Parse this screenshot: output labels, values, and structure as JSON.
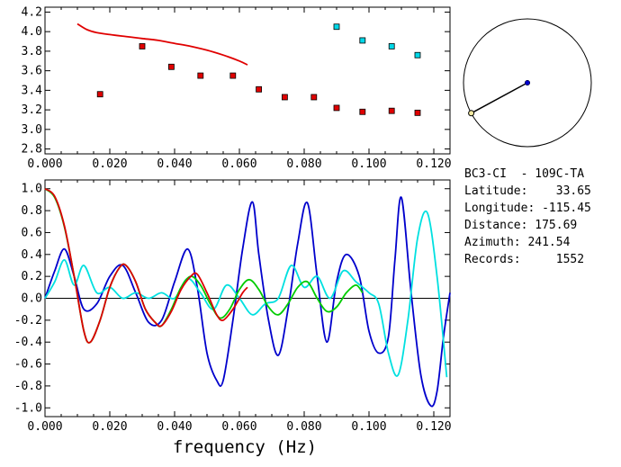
{
  "chart_data": [
    {
      "type": "scatter",
      "xlim": [
        0,
        0.125
      ],
      "ylim": [
        2.75,
        4.25
      ],
      "xticks": [
        "0.000",
        "0.020",
        "0.040",
        "0.060",
        "0.080",
        "0.100",
        "0.120"
      ],
      "yticks": [
        "2.8",
        "3.0",
        "3.2",
        "3.4",
        "3.6",
        "3.8",
        "4.0",
        "4.2"
      ],
      "series": [
        {
          "kind": "line",
          "color": "#e00000",
          "x": [
            0.01,
            0.013,
            0.016,
            0.02,
            0.025,
            0.03,
            0.035,
            0.04,
            0.045,
            0.05,
            0.055,
            0.06,
            0.0625
          ],
          "y": [
            4.08,
            4.02,
            3.99,
            3.97,
            3.95,
            3.93,
            3.91,
            3.88,
            3.85,
            3.81,
            3.76,
            3.7,
            3.66
          ]
        },
        {
          "kind": "markers",
          "color": "#e00000",
          "x": [
            0.017,
            0.03,
            0.039,
            0.048,
            0.058,
            0.066,
            0.074,
            0.083,
            0.09,
            0.098,
            0.107,
            0.115
          ],
          "y": [
            3.36,
            3.85,
            3.64,
            3.55,
            3.55,
            3.41,
            3.33,
            3.33,
            3.22,
            3.18,
            3.19,
            3.17
          ]
        },
        {
          "kind": "markers",
          "color": "#00d8e8",
          "x": [
            0.09,
            0.098,
            0.107,
            0.115
          ],
          "y": [
            4.05,
            3.91,
            3.85,
            3.76
          ]
        }
      ]
    },
    {
      "type": "line",
      "xlim": [
        0,
        0.125
      ],
      "ylim": [
        -1.08,
        1.08
      ],
      "xticks": [
        "0.000",
        "0.020",
        "0.040",
        "0.060",
        "0.080",
        "0.100",
        "0.120"
      ],
      "yticks": [
        "1.0",
        "0.8",
        "0.6",
        "0.4",
        "0.2",
        "0.0",
        "-0.2",
        "-0.4",
        "-0.6",
        "-0.8",
        "-1.0"
      ],
      "xlabel": "frequency (Hz)",
      "series": [
        {
          "color": "#0000cc",
          "x": [
            0.0,
            0.003,
            0.006,
            0.009,
            0.012,
            0.016,
            0.02,
            0.024,
            0.028,
            0.032,
            0.036,
            0.04,
            0.044,
            0.047,
            0.05,
            0.053,
            0.055,
            0.058,
            0.061,
            0.064,
            0.066,
            0.069,
            0.072,
            0.075,
            0.078,
            0.081,
            0.084,
            0.087,
            0.09,
            0.093,
            0.097,
            0.1,
            0.103,
            0.106,
            0.108,
            0.11,
            0.113,
            0.116,
            0.119,
            0.121,
            0.123,
            0.125
          ],
          "y": [
            0.0,
            0.25,
            0.45,
            0.2,
            -0.1,
            -0.05,
            0.2,
            0.3,
            0.05,
            -0.22,
            -0.2,
            0.15,
            0.45,
            0.1,
            -0.5,
            -0.75,
            -0.75,
            -0.2,
            0.45,
            0.88,
            0.4,
            -0.2,
            -0.52,
            -0.1,
            0.5,
            0.87,
            0.2,
            -0.4,
            0.15,
            0.4,
            0.2,
            -0.3,
            -0.5,
            -0.35,
            0.35,
            0.92,
            0.05,
            -0.7,
            -0.98,
            -0.85,
            -0.35,
            0.05
          ]
        },
        {
          "color": "#00e0e0",
          "x": [
            0.0,
            0.003,
            0.006,
            0.009,
            0.012,
            0.016,
            0.02,
            0.024,
            0.028,
            0.032,
            0.036,
            0.04,
            0.044,
            0.048,
            0.052,
            0.056,
            0.06,
            0.064,
            0.068,
            0.072,
            0.076,
            0.08,
            0.084,
            0.088,
            0.092,
            0.096,
            0.1,
            0.103,
            0.106,
            0.109,
            0.112,
            0.115,
            0.118,
            0.121,
            0.124
          ],
          "y": [
            0.0,
            0.15,
            0.35,
            0.12,
            0.3,
            0.05,
            0.1,
            0.0,
            0.05,
            0.0,
            0.05,
            0.0,
            0.18,
            0.05,
            -0.1,
            0.12,
            0.0,
            -0.15,
            -0.05,
            0.0,
            0.3,
            0.1,
            0.2,
            0.0,
            0.25,
            0.15,
            0.05,
            -0.05,
            -0.5,
            -0.7,
            -0.2,
            0.55,
            0.78,
            0.2,
            -0.72
          ]
        },
        {
          "color": "#00cc00",
          "x": [
            0.0,
            0.003,
            0.006,
            0.009,
            0.012,
            0.014,
            0.017,
            0.02,
            0.023,
            0.025,
            0.028,
            0.031,
            0.034,
            0.036,
            0.039,
            0.042,
            0.045,
            0.048,
            0.051,
            0.054,
            0.057,
            0.06,
            0.063,
            0.066,
            0.069,
            0.072,
            0.075,
            0.078,
            0.081,
            0.084,
            0.087,
            0.09,
            0.093,
            0.096,
            0.098
          ],
          "y": [
            1.0,
            0.92,
            0.65,
            0.2,
            -0.3,
            -0.4,
            -0.2,
            0.1,
            0.28,
            0.3,
            0.15,
            -0.1,
            -0.22,
            -0.25,
            -0.1,
            0.1,
            0.2,
            0.12,
            -0.05,
            -0.18,
            -0.1,
            0.08,
            0.17,
            0.08,
            -0.08,
            -0.15,
            -0.05,
            0.1,
            0.15,
            0.0,
            -0.12,
            -0.08,
            0.05,
            0.12,
            0.05
          ]
        },
        {
          "color": "#dd0000",
          "x": [
            0.0,
            0.003,
            0.006,
            0.009,
            0.012,
            0.014,
            0.017,
            0.02,
            0.023,
            0.025,
            0.028,
            0.031,
            0.034,
            0.036,
            0.039,
            0.042,
            0.045,
            0.047,
            0.05,
            0.053,
            0.055,
            0.058,
            0.061,
            0.0625
          ],
          "y": [
            1.0,
            0.93,
            0.66,
            0.2,
            -0.3,
            -0.4,
            -0.2,
            0.1,
            0.28,
            0.3,
            0.15,
            -0.1,
            -0.22,
            -0.25,
            -0.12,
            0.08,
            0.2,
            0.22,
            0.05,
            -0.15,
            -0.2,
            -0.1,
            0.05,
            0.1
          ]
        }
      ]
    }
  ],
  "azimuth_diagram": {
    "azimuth": 241.54
  },
  "info": {
    "station": "BC3-CI  - 109C-TA",
    "latitude": "Latitude:    33.65",
    "longitude": "Longitude: -115.45",
    "distance": "Distance: 175.69",
    "azimuth": "Azimuth: 241.54",
    "records": "Records:     1552"
  }
}
